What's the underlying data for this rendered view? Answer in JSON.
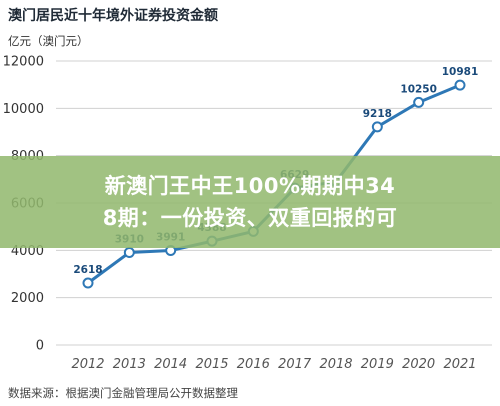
{
  "chart_data": {
    "type": "line",
    "title": "澳门居民近十年境外证券投资金额",
    "unit_label": "亿元（澳门元）",
    "source": "数据来源：根据澳门金融管理局公开数据整理",
    "x": [
      "2012",
      "2013",
      "2014",
      "2015",
      "2016",
      "2017",
      "2018",
      "2019",
      "2020",
      "2021"
    ],
    "series": [
      {
        "values": [
          2618,
          3910,
          3991,
          4388,
          4800,
          6629,
          6900,
          9218,
          10250,
          10981
        ]
      }
    ],
    "data_labels": [
      "2618",
      "3910",
      "3991",
      "4388",
      "",
      "6629",
      "",
      "9218",
      "10250",
      "10981"
    ],
    "yticks": [
      0,
      2000,
      4000,
      6000,
      8000,
      10000,
      12000
    ],
    "ylim": [
      0,
      12000
    ],
    "grid": true,
    "colors": {
      "line": "#2e78b6",
      "marker_fill": "#ffffff",
      "grid": "#d0d0d0",
      "label": "#1a4a7a"
    }
  },
  "overlay": {
    "text": "新澳门王中王100%期期中34\n8期：一份投资、双重回报的可",
    "color": "#92b86e"
  }
}
